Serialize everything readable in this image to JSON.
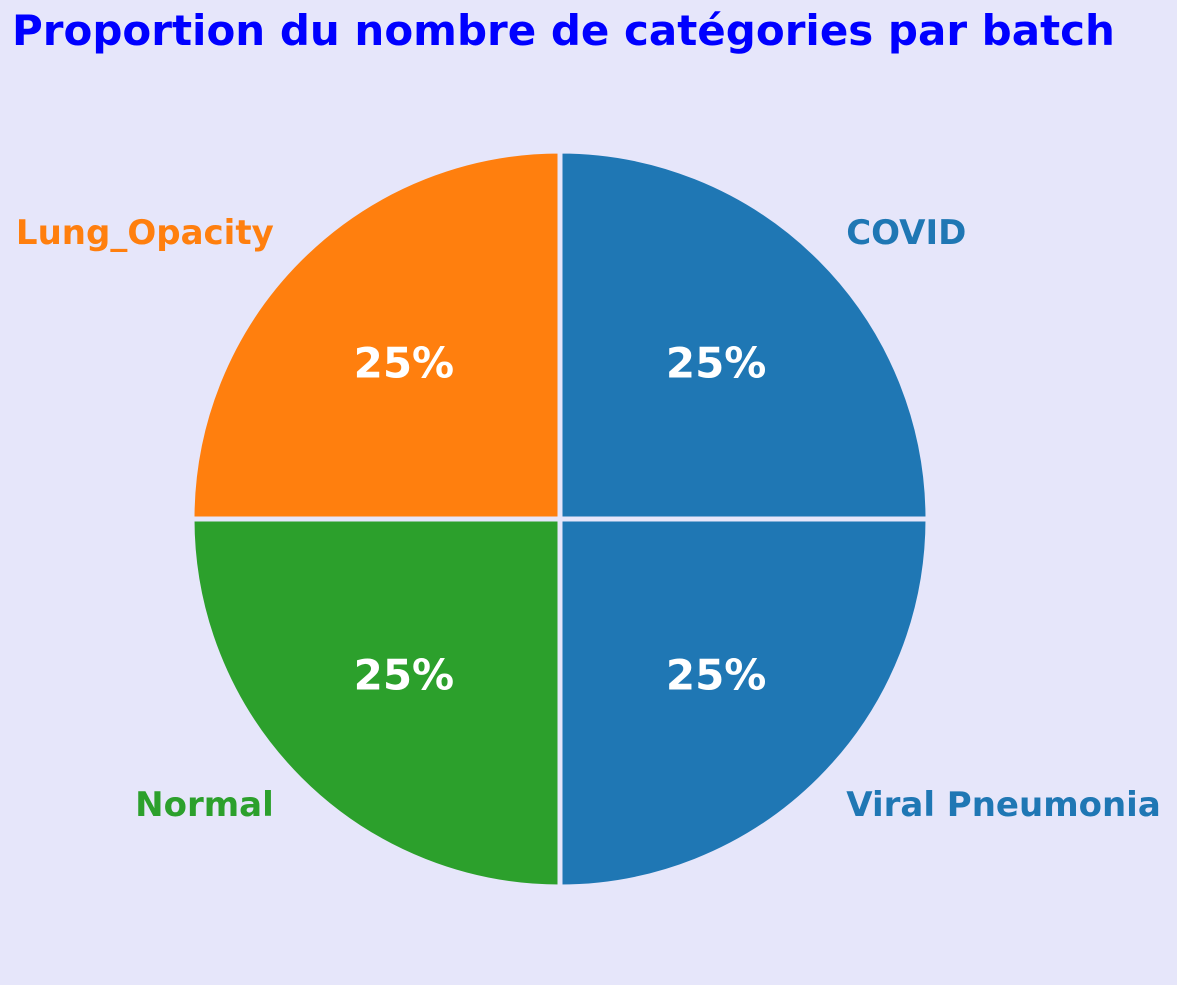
{
  "chart_data": {
    "type": "pie",
    "title": "Proportion du nombre de catégories par batch",
    "title_color": "#0000ff",
    "background_color": "#e6e6fa",
    "edge_color": "#e6e6fa",
    "start_angle_deg": 90,
    "direction": "clockwise",
    "slices": [
      {
        "label": "COVID",
        "value": 25,
        "pct_text": "25%",
        "color": "#1f77b4"
      },
      {
        "label": "Viral Pneumonia",
        "value": 25,
        "pct_text": "25%",
        "color": "#1f77b4"
      },
      {
        "label": "Normal",
        "value": 25,
        "pct_text": "25%",
        "color": "#2ca02c"
      },
      {
        "label": "Lung_Opacity",
        "value": 25,
        "pct_text": "25%",
        "color": "#ff7f0e"
      }
    ]
  }
}
